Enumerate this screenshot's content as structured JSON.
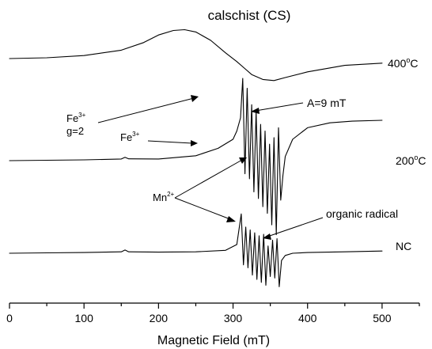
{
  "chart_data": {
    "type": "line",
    "title": "calschist (CS)",
    "xlabel": "Magnetic Field (mT)",
    "ylabel": "",
    "xlim": [
      0,
      550
    ],
    "xticks": [
      0,
      100,
      200,
      300,
      400,
      500
    ],
    "tick_labels": [
      "0",
      "100",
      "200",
      "300",
      "400",
      "500"
    ],
    "grid": false,
    "series": [
      {
        "name": "400°C",
        "label_base": "400",
        "label_sup": "o",
        "label_tail": "C",
        "x": [
          0,
          50,
          100,
          150,
          180,
          200,
          220,
          235,
          250,
          270,
          290,
          305,
          315,
          325,
          340,
          355,
          370,
          400,
          450,
          500
        ],
        "y": [
          0.0,
          0.02,
          0.08,
          0.22,
          0.42,
          0.62,
          0.74,
          0.76,
          0.7,
          0.48,
          0.15,
          -0.08,
          -0.25,
          -0.42,
          -0.55,
          -0.58,
          -0.5,
          -0.35,
          -0.18,
          -0.12
        ]
      },
      {
        "name": "200°C",
        "label_base": "200",
        "label_sup": "o",
        "label_tail": "C",
        "x": [
          0,
          50,
          100,
          150,
          155,
          160,
          200,
          250,
          280,
          300,
          305,
          310,
          313,
          316,
          319,
          322,
          325,
          328,
          331,
          334,
          337,
          340,
          343,
          346,
          349,
          352,
          355,
          358,
          361,
          364,
          367,
          370,
          380,
          400,
          430,
          460,
          500
        ],
        "y": [
          0.0,
          0.05,
          0.1,
          0.2,
          0.4,
          0.22,
          0.2,
          0.6,
          1.5,
          2.6,
          3.6,
          5.2,
          10.0,
          -1.6,
          8.8,
          -2.2,
          6.8,
          -3.8,
          6.0,
          -4.6,
          4.4,
          -5.6,
          3.6,
          -6.4,
          2.0,
          -7.8,
          2.8,
          -9.0,
          4.0,
          -4.8,
          -1.8,
          0.5,
          2.6,
          4.0,
          4.6,
          4.8,
          4.9
        ]
      },
      {
        "name": "NC",
        "label_base": "NC",
        "label_sup": "",
        "label_tail": "",
        "x": [
          0,
          50,
          100,
          150,
          155,
          160,
          200,
          250,
          290,
          305,
          311,
          314,
          317,
          320,
          323,
          326,
          329,
          332,
          335,
          338,
          341,
          344,
          347,
          350,
          353,
          356,
          359,
          362,
          365,
          370,
          380,
          400,
          450,
          500
        ],
        "y": [
          0.0,
          0.05,
          0.1,
          0.2,
          0.45,
          0.2,
          0.15,
          0.2,
          0.4,
          1.2,
          5.4,
          -1.6,
          3.6,
          -2.0,
          3.2,
          -3.0,
          2.8,
          -3.6,
          2.4,
          -4.0,
          2.6,
          -4.4,
          1.0,
          -3.2,
          1.8,
          -3.4,
          2.0,
          -4.6,
          -1.0,
          -0.3,
          0.0,
          0.1,
          0.2,
          0.3
        ]
      }
    ],
    "annotations": {
      "fe_g2": {
        "main": "Fe",
        "sup": "3+",
        "line2": "g=2"
      },
      "fe_200": {
        "main": "Fe",
        "sup": "3+"
      },
      "a9": {
        "text": "A=9 mT"
      },
      "mn": {
        "main": "Mn",
        "sup": "2+"
      },
      "organic": {
        "text": "organic radical"
      }
    }
  }
}
